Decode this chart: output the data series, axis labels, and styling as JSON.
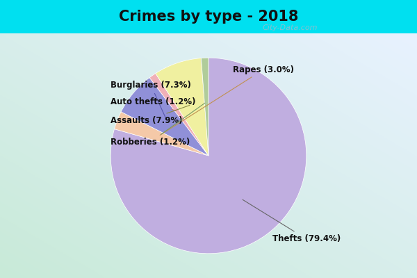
{
  "title": "Crimes by type - 2018",
  "title_fontsize": 15,
  "title_fontweight": "bold",
  "slices": [
    {
      "label": "Thefts",
      "pct": 79.4,
      "color": "#c0aee0"
    },
    {
      "label": "Rapes",
      "pct": 3.0,
      "color": "#f5c9a8"
    },
    {
      "label": "Burglaries",
      "pct": 7.3,
      "color": "#9090d8"
    },
    {
      "label": "Auto thefts",
      "pct": 1.2,
      "color": "#f0b0b8"
    },
    {
      "label": "Assaults",
      "pct": 7.9,
      "color": "#f0f0a0"
    },
    {
      "label": "Robberies",
      "pct": 1.2,
      "color": "#b0cc9a"
    }
  ],
  "bg_cyan": "#00e0f0",
  "bg_grad_topleft": "#c8ead8",
  "bg_grad_bottomright": "#e8f2ff",
  "watermark": "City-Data.com",
  "cyan_bar_height": 0.12
}
